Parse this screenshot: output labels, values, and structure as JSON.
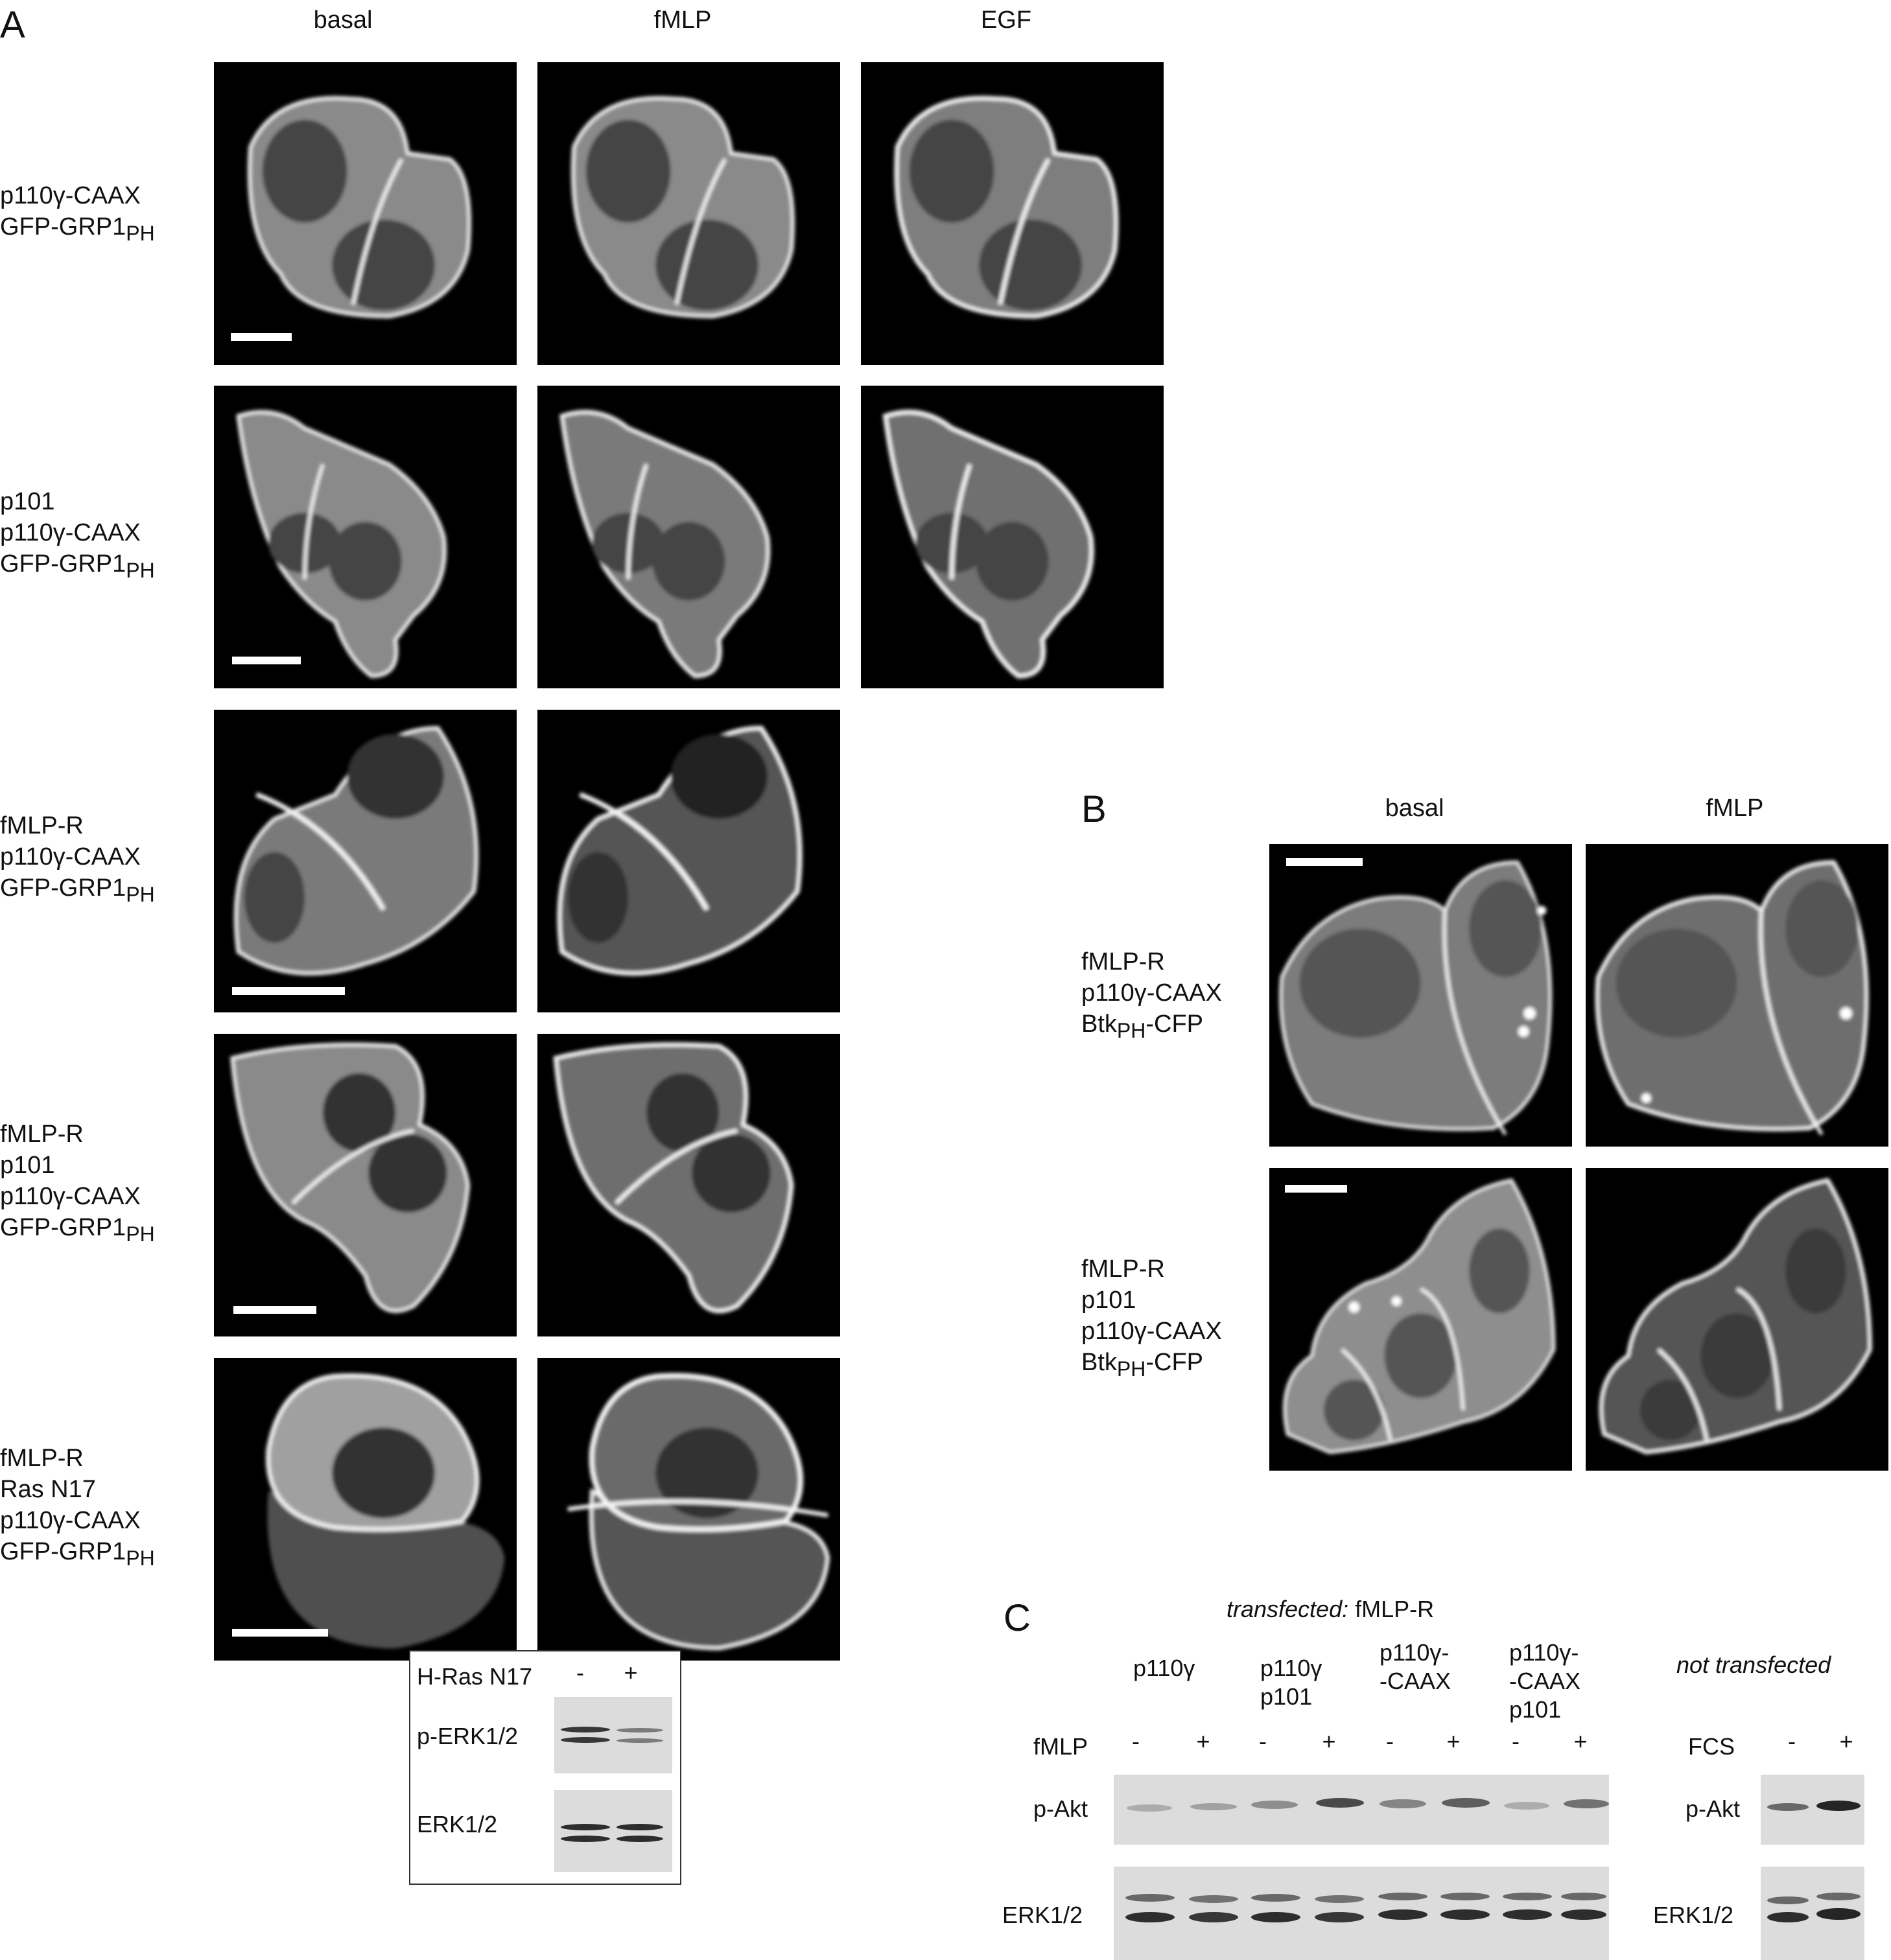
{
  "panel_a": {
    "letter": "A",
    "columns": [
      "basal",
      "fMLP",
      "EGF"
    ],
    "rows": [
      {
        "lines": [
          "p110γ-CAAX"
        ],
        "last_main": "GFP-GRP1",
        "last_sub": "PH"
      },
      {
        "lines": [
          "p101",
          "p110γ-CAAX"
        ],
        "last_main": "GFP-GRP1",
        "last_sub": "PH"
      },
      {
        "lines": [
          "fMLP-R",
          "p110γ-CAAX"
        ],
        "last_main": "GFP-GRP1",
        "last_sub": "PH"
      },
      {
        "lines": [
          "fMLP-R",
          "p101",
          "p110γ-CAAX"
        ],
        "last_main": "GFP-GRP1",
        "last_sub": "PH"
      },
      {
        "lines": [
          "fMLP-R",
          "Ras N17",
          "p110γ-CAAX"
        ],
        "last_main": "GFP-GRP1",
        "last_sub": "PH"
      }
    ],
    "inset": {
      "header": "H-Ras N17",
      "minus": "-",
      "plus": "+",
      "row1": "p-ERK1/2",
      "row2": "ERK1/2"
    }
  },
  "panel_b": {
    "letter": "B",
    "columns": [
      "basal",
      "fMLP"
    ],
    "rows": [
      {
        "lines": [
          "fMLP-R",
          "p110γ-CAAX"
        ],
        "btk_main": "Btk",
        "btk_sub": "PH",
        "btk_tail": "-CFP"
      },
      {
        "lines": [
          "fMLP-R",
          "p101",
          "p110γ-CAAX"
        ],
        "btk_main": "Btk",
        "btk_sub": "PH",
        "btk_tail": "-CFP"
      }
    ]
  },
  "panel_c": {
    "letter": "C",
    "title_italic": "transfected:",
    "title_rest": " fMLP-R",
    "groups": [
      {
        "l1": "p110γ",
        "l2": "",
        "l3": ""
      },
      {
        "l1": "p110γ",
        "l2": "p101",
        "l3": ""
      },
      {
        "l1": "p110γ-",
        "l2": "-CAAX",
        "l3": ""
      },
      {
        "l1": "p110γ-",
        "l2": "-CAAX",
        "l3": "p101"
      }
    ],
    "not_transfected": "not transfected",
    "fmlp": "fMLP",
    "fcs": "FCS",
    "minus": "-",
    "plus": "+",
    "pakt": "p-Akt",
    "erk": "ERK1/2"
  }
}
